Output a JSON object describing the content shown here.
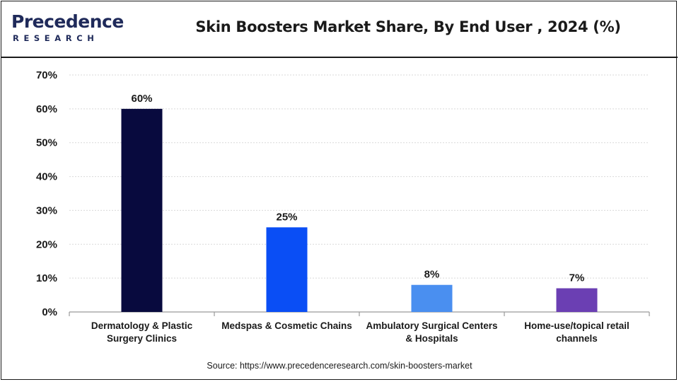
{
  "brand": {
    "name_main": "Precedence",
    "name_sub": "RESEARCH",
    "primary_color": "#1f2a5a",
    "accent_color": "#2a6bd8"
  },
  "chart_data": {
    "type": "bar",
    "title": "Skin Boosters Market Share, By End User , 2024 (%)",
    "categories": [
      [
        "Dermatology & Plastic",
        "Surgery Clinics"
      ],
      [
        "Medspas & Cosmetic Chains"
      ],
      [
        "Ambulatory Surgical Centers",
        "& Hospitals"
      ],
      [
        "Home-use/topical retail",
        "channels"
      ]
    ],
    "values": [
      60,
      25,
      8,
      7
    ],
    "value_labels": [
      "60%",
      "25%",
      "8%",
      "7%"
    ],
    "colors": [
      "#080a3e",
      "#0a4ef5",
      "#4a8ff0",
      "#6b3fb3"
    ],
    "ylim": [
      0,
      70
    ],
    "yticks": [
      0,
      10,
      20,
      30,
      40,
      50,
      60,
      70
    ],
    "ytick_labels": [
      "0%",
      "10%",
      "20%",
      "30%",
      "40%",
      "50%",
      "60%",
      "70%"
    ],
    "xlabel": "",
    "ylabel": "",
    "grid": true,
    "source": "Source: https://www.precedenceresearch.com/skin-boosters-market"
  }
}
